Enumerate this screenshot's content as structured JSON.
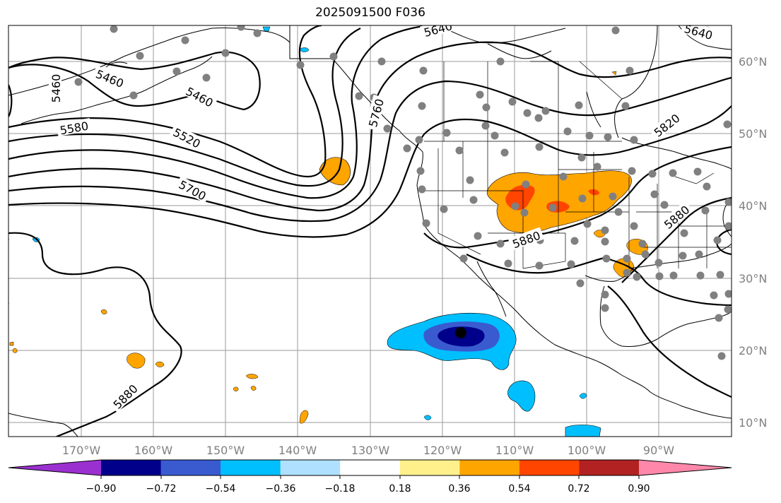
{
  "title": "2025091500 F036",
  "map": {
    "projection": "cylindrical",
    "lon_range": [
      -180,
      -80
    ],
    "lat_range": [
      8,
      65
    ],
    "lon_ticks": [
      "170°W",
      "160°W",
      "150°W",
      "140°W",
      "130°W",
      "120°W",
      "110°W",
      "100°W",
      "90°W"
    ],
    "lat_ticks": [
      "10°N",
      "20°N",
      "30°N",
      "40°N",
      "50°N",
      "60°N"
    ],
    "gridlines": true,
    "contour_labels": [
      "5460",
      "5460",
      "5460",
      "5580",
      "5520",
      "5700",
      "5640",
      "5640",
      "5820",
      "5880",
      "5880",
      "5880",
      "5760"
    ],
    "station_marker_color": "#808080",
    "center_marker_color": "#000000"
  },
  "colorbar": {
    "tick_labels": [
      "−0.90",
      "−0.72",
      "−0.54",
      "−0.36",
      "−0.18",
      "0.18",
      "0.36",
      "0.54",
      "0.72",
      "0.90"
    ],
    "colors": [
      "#9b30d0",
      "#00008b",
      "#3a5bd0",
      "#00bfff",
      "#b0e0ff",
      "#ffffff",
      "#fff08c",
      "#ffa500",
      "#ff4500",
      "#b22222",
      "#ff88aa"
    ]
  }
}
